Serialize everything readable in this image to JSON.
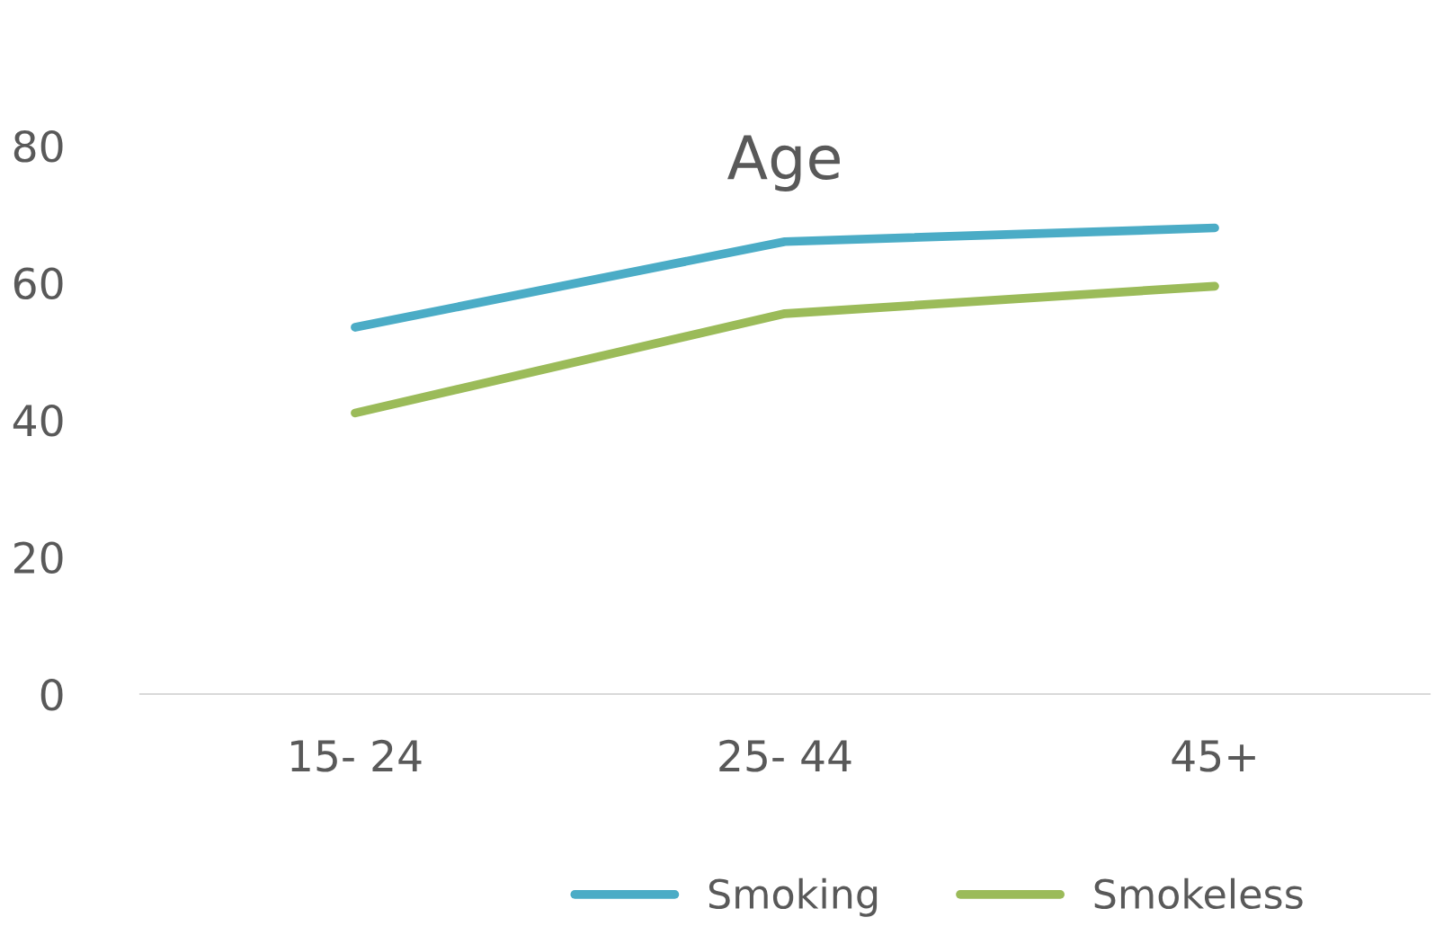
{
  "chart_data": {
    "type": "line",
    "title": "Age",
    "categories": [
      "15- 24",
      "25- 44",
      "45+"
    ],
    "series": [
      {
        "name": "Smoking",
        "color": "#4bacc6",
        "values": [
          53.5,
          66,
          68
        ]
      },
      {
        "name": "Smokeless",
        "color": "#9bbb59",
        "values": [
          41,
          55.5,
          59.5
        ]
      }
    ],
    "ylim": [
      0,
      80
    ],
    "yticks": [
      0,
      20,
      40,
      60,
      80
    ],
    "grid": false,
    "legend": "bottom",
    "marker": "none",
    "line_style": "solid"
  }
}
